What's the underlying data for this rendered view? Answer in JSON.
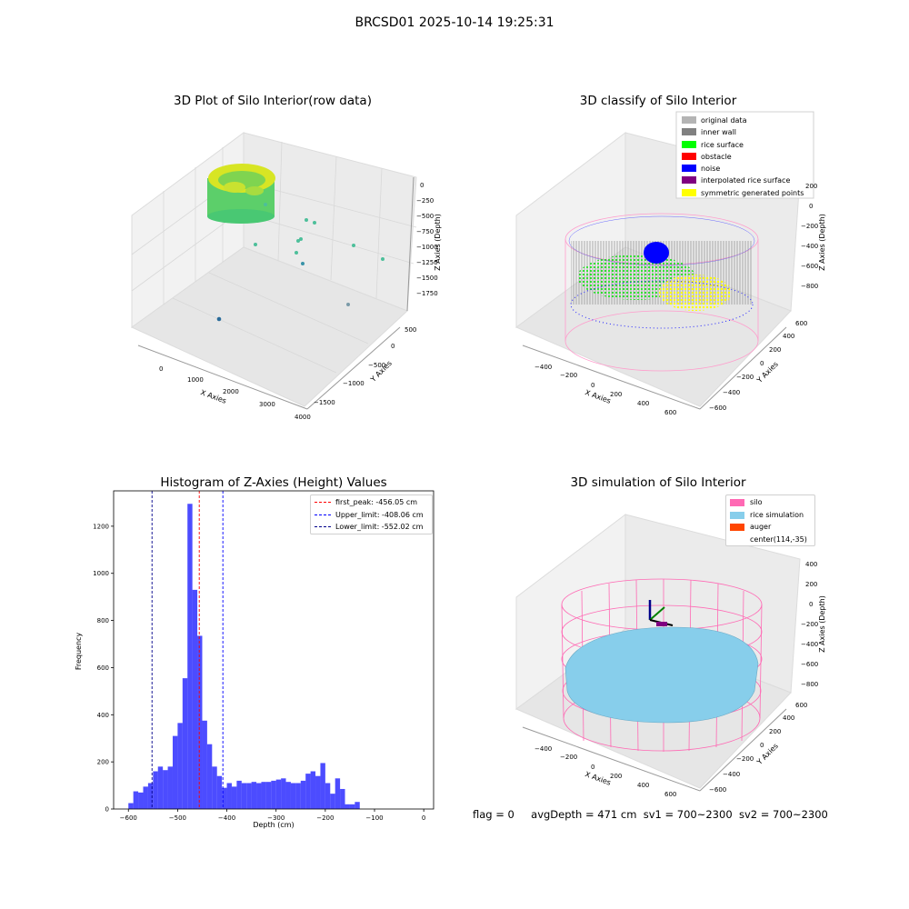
{
  "suptitle": "BRCSD01 2025-10-14 19:25:31",
  "panels": {
    "raw": {
      "title": "3D Plot of Silo Interior(row data)",
      "xlabel": "X Axies",
      "ylabel": "Y Axies",
      "zlabel": "Z Axies (Depth)",
      "xticks": [
        "0",
        "1000",
        "2000",
        "3000",
        "4000"
      ],
      "yticks": [
        "500",
        "0",
        "−500",
        "−1000",
        "−1500"
      ],
      "zticks": [
        "0",
        "−250",
        "−500",
        "−750",
        "−1000",
        "−1250",
        "−1500",
        "−1750"
      ]
    },
    "classify": {
      "title": "3D classify of Silo Interior",
      "xlabel": "X Axies",
      "ylabel": "Y Axies",
      "zlabel": "Z Axies (Depth)",
      "xticks": [
        "−400",
        "−200",
        "0",
        "200",
        "400",
        "600"
      ],
      "yticks": [
        "600",
        "400",
        "200",
        "0",
        "−200",
        "−400",
        "−600"
      ],
      "zticks": [
        "200",
        "0",
        "−200",
        "−400",
        "−600",
        "−800"
      ],
      "legend": [
        {
          "label": "original data",
          "color": "#b4b4b4"
        },
        {
          "label": "inner wall",
          "color": "#808080"
        },
        {
          "label": "rice surface",
          "color": "#00ff00"
        },
        {
          "label": "obstacle",
          "color": "#ff0000"
        },
        {
          "label": "noise",
          "color": "#0000ff"
        },
        {
          "label": "interpolated rice surface",
          "color": "#800080"
        },
        {
          "label": "symmetric generated points",
          "color": "#ffff00"
        }
      ]
    },
    "simulation": {
      "title": "3D simulation of Silo Interior",
      "xlabel": "X Axies",
      "ylabel": "Y Axies",
      "zlabel": "Z Axies (Depth)",
      "xticks": [
        "−400",
        "−200",
        "0",
        "200",
        "400",
        "600"
      ],
      "yticks": [
        "600",
        "400",
        "200",
        "0",
        "−200",
        "−400",
        "−600"
      ],
      "zticks": [
        "400",
        "200",
        "0",
        "−200",
        "−400",
        "−600",
        "−800"
      ],
      "legend": [
        {
          "label": "silo",
          "color": "#ff69b4"
        },
        {
          "label": "rice simulation",
          "color": "#87ceeb"
        },
        {
          "label": "auger",
          "color": "#ff4500"
        },
        {
          "label": "center(114,-35)",
          "color": ""
        }
      ]
    }
  },
  "chart_data": [
    {
      "type": "bar",
      "title": "Histogram of Z-Axies (Height) Values",
      "xlabel": "Depth (cm)",
      "ylabel": "Frequency",
      "bin_start": -600,
      "bin_width": 10,
      "xlim": [
        -630,
        20
      ],
      "ylim": [
        0,
        1350
      ],
      "xticks": [
        -600,
        -500,
        -400,
        -300,
        -200,
        -100,
        0
      ],
      "yticks": [
        0,
        200,
        400,
        600,
        800,
        1000,
        1200
      ],
      "values": [
        25,
        75,
        70,
        95,
        110,
        160,
        180,
        165,
        180,
        310,
        365,
        555,
        1295,
        930,
        735,
        375,
        275,
        180,
        140,
        90,
        110,
        95,
        120,
        110,
        110,
        115,
        110,
        115,
        115,
        120,
        125,
        130,
        115,
        110,
        110,
        120,
        150,
        160,
        140,
        195,
        110,
        65,
        130,
        85,
        20,
        20,
        30
      ],
      "bar_color": "#0000ff",
      "vlines": [
        {
          "x": -456.05,
          "label": "first_peak: -456.05 cm",
          "color": "#ff0000"
        },
        {
          "x": -408.06,
          "label": "Upper_limit: -408.06 cm",
          "color": "#0000ff"
        },
        {
          "x": -552.02,
          "label": "Lower_limit: -552.02 cm",
          "color": "#00008b"
        }
      ],
      "legend_position": "top-right"
    }
  ],
  "status": {
    "flag": "flag = 0",
    "avg_depth": "avgDepth = 471 cm",
    "sv1": "sv1 = 700~2300",
    "sv2": "sv2 = 700~2300"
  }
}
